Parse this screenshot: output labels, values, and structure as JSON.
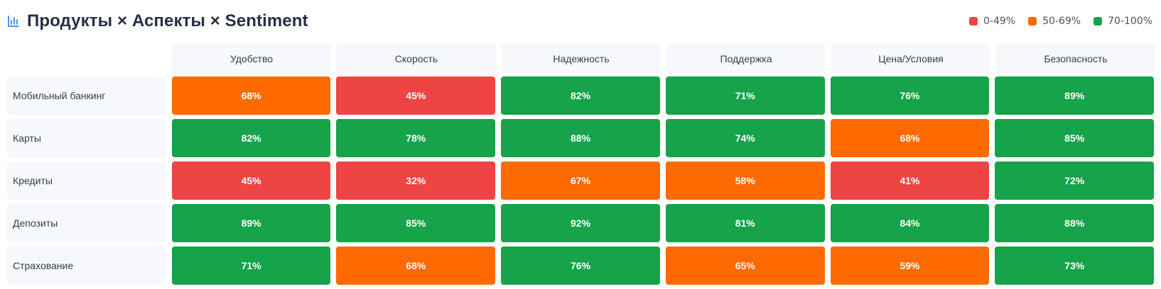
{
  "header": {
    "title": "Продукты × Аспекты × Sentiment",
    "icon": "bar-chart-icon"
  },
  "legend": [
    {
      "label": "0-49%",
      "color": "#ef4444"
    },
    {
      "label": "50-69%",
      "color": "#ff6a00"
    },
    {
      "label": "70-100%",
      "color": "#16a34a"
    }
  ],
  "chart_data": {
    "type": "heatmap",
    "title": "Продукты × Аспекты × Sentiment",
    "x_categories": [
      "Удобство",
      "Скорость",
      "Надежность",
      "Поддержка",
      "Цена/Условия",
      "Безопасность"
    ],
    "y_categories": [
      "Мобильный банкинг",
      "Карты",
      "Кредиты",
      "Депозиты",
      "Страхование"
    ],
    "values": [
      [
        68,
        45,
        82,
        71,
        76,
        89
      ],
      [
        82,
        78,
        88,
        74,
        68,
        85
      ],
      [
        45,
        32,
        67,
        58,
        41,
        72
      ],
      [
        89,
        85,
        92,
        81,
        84,
        88
      ],
      [
        71,
        68,
        76,
        65,
        59,
        73
      ]
    ],
    "value_suffix": "%",
    "color_scale": [
      {
        "min": 0,
        "max": 49,
        "color": "#ef4444"
      },
      {
        "min": 50,
        "max": 69,
        "color": "#ff6a00"
      },
      {
        "min": 70,
        "max": 100,
        "color": "#16a34a"
      }
    ],
    "legend_position": "top-right"
  }
}
